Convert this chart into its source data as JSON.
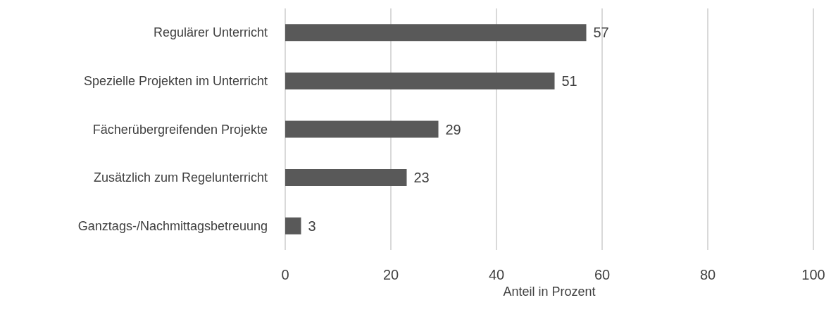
{
  "chart_data": {
    "type": "bar",
    "orientation": "horizontal",
    "xlabel": "Anteil in Prozent",
    "categories": [
      "Regulärer Unterricht",
      "Spezielle Projekten im Unterricht",
      "Fächerübergreifenden Projekte",
      "Zusätzlich zum Regelunterricht",
      "Ganztags-/Nachmittagsbetreuung"
    ],
    "values": [
      57,
      51,
      29,
      23,
      3
    ],
    "color": "#595959",
    "xlim": [
      0,
      100
    ],
    "xticks": [
      0,
      20,
      40,
      60,
      80,
      100
    ],
    "grid": "x",
    "data_labels": true
  }
}
